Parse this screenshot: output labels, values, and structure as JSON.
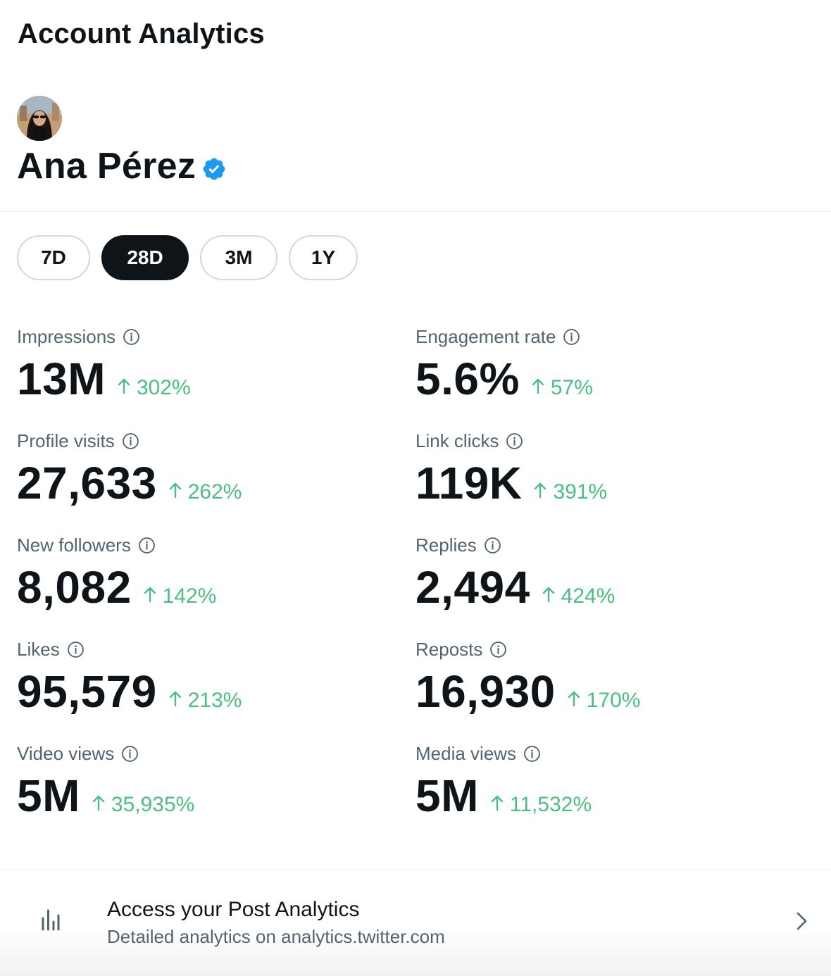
{
  "page": {
    "title": "Account Analytics"
  },
  "profile": {
    "name": "Ana Pérez",
    "verified": true,
    "verified_icon": "verified-badge-icon",
    "verified_color": "#1d9bf0"
  },
  "ranges": {
    "options": [
      "7D",
      "28D",
      "3M",
      "1Y"
    ],
    "selected": "28D"
  },
  "metrics": [
    {
      "label": "Impressions",
      "value": "13M",
      "change": "302%"
    },
    {
      "label": "Engagement rate",
      "value": "5.6%",
      "change": "57%"
    },
    {
      "label": "Profile visits",
      "value": "27,633",
      "change": "262%"
    },
    {
      "label": "Link clicks",
      "value": "119K",
      "change": "391%"
    },
    {
      "label": "New followers",
      "value": "8,082",
      "change": "142%"
    },
    {
      "label": "Replies",
      "value": "2,494",
      "change": "424%"
    },
    {
      "label": "Likes",
      "value": "95,579",
      "change": "213%"
    },
    {
      "label": "Reposts",
      "value": "16,930",
      "change": "170%"
    },
    {
      "label": "Video views",
      "value": "5M",
      "change": "35,935%"
    },
    {
      "label": "Media views",
      "value": "5M",
      "change": "11,532%"
    }
  ],
  "post_analytics": {
    "title": "Access your Post Analytics",
    "subtitle": "Detailed analytics on analytics.twitter.com",
    "icon": "bar-chart-icon"
  },
  "colors": {
    "positive": "#4bbf7f",
    "text_primary": "#0f1419",
    "text_secondary": "#536471"
  }
}
